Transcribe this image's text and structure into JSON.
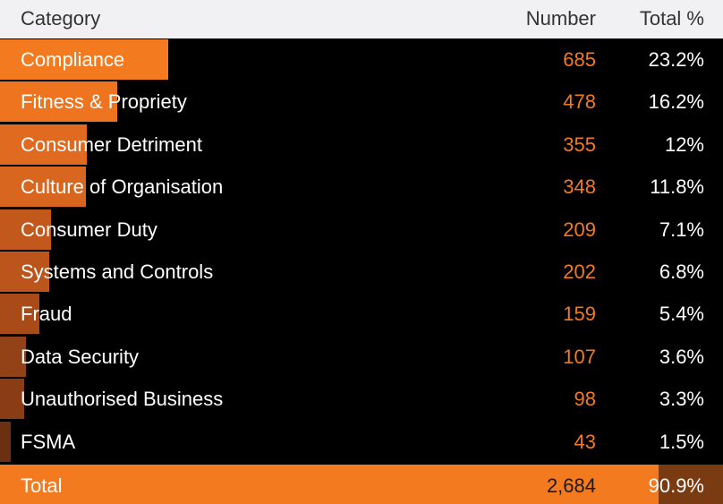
{
  "header": {
    "category": "Category",
    "number": "Number",
    "total_pct": "Total %"
  },
  "chart_data": {
    "type": "table",
    "columns": [
      "Category",
      "Number",
      "Total %"
    ],
    "rows": [
      {
        "category": "Compliance",
        "number": 685,
        "number_label": "685",
        "pct_label": "23.2%",
        "color": "#f47a20"
      },
      {
        "category": "Fitness & Propriety",
        "number": 478,
        "number_label": "478",
        "pct_label": "16.2%",
        "color": "#ee7420"
      },
      {
        "category": "Consumer Detriment",
        "number": 355,
        "number_label": "355",
        "pct_label": "12%",
        "color": "#e06a1f"
      },
      {
        "category": "Culture of Organisation",
        "number": 348,
        "number_label": "348",
        "pct_label": "11.8%",
        "color": "#d9661e"
      },
      {
        "category": "Consumer Duty",
        "number": 209,
        "number_label": "209",
        "pct_label": "7.1%",
        "color": "#c2581b"
      },
      {
        "category": "Systems and Controls",
        "number": 202,
        "number_label": "202",
        "pct_label": "6.8%",
        "color": "#bb551b"
      },
      {
        "category": "Fraud",
        "number": 159,
        "number_label": "159",
        "pct_label": "5.4%",
        "color": "#a84b18"
      },
      {
        "category": "Data Security",
        "number": 107,
        "number_label": "107",
        "pct_label": "3.6%",
        "color": "#934116"
      },
      {
        "category": "Unauthorised Business",
        "number": 98,
        "number_label": "98",
        "pct_label": "3.3%",
        "color": "#8a3c15"
      },
      {
        "category": "FSMA",
        "number": 43,
        "number_label": "43",
        "pct_label": "1.5%",
        "color": "#6b2f11"
      }
    ],
    "max_value": 685
  },
  "total": {
    "label": "Total",
    "number": "2,684",
    "pct": "90.9%"
  },
  "colors": {
    "accent": "#f47a20",
    "header_bg": "#f1f1f4",
    "body_bg": "#000000"
  }
}
